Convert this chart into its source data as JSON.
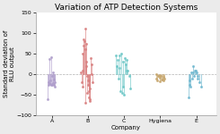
{
  "title": "Variation of ATP Detection Systems",
  "xlabel": "Company",
  "ylabel": "Standard deviation of\nRLU output",
  "ylim": [
    -100,
    150
  ],
  "yticks": [
    -100,
    -50,
    0,
    50,
    100,
    150
  ],
  "categories": [
    "A",
    "B",
    "C",
    "Hygiena",
    "E"
  ],
  "cat_x": [
    1,
    2,
    3,
    4,
    5
  ],
  "colors": [
    "#b09fcc",
    "#d98080",
    "#70c8c8",
    "#c8a870",
    "#70b8d0"
  ],
  "hline_y": 0,
  "A_points": [
    [
      0.92,
      -25
    ],
    [
      0.94,
      -22
    ],
    [
      0.96,
      -24
    ],
    [
      0.98,
      -25
    ],
    [
      1.0,
      -25
    ],
    [
      1.02,
      -22
    ],
    [
      1.04,
      -24
    ],
    [
      1.06,
      -25
    ],
    [
      0.93,
      38
    ],
    [
      0.97,
      42
    ],
    [
      1.01,
      -5
    ],
    [
      1.05,
      -12
    ],
    [
      1.08,
      -30
    ],
    [
      0.89,
      -60
    ],
    [
      0.95,
      -15
    ],
    [
      1.03,
      5
    ],
    [
      0.91,
      -20
    ],
    [
      1.07,
      -20
    ]
  ],
  "B_points": [
    [
      1.82,
      -20
    ],
    [
      1.86,
      10
    ],
    [
      1.88,
      70
    ],
    [
      1.9,
      80
    ],
    [
      1.92,
      110
    ],
    [
      1.94,
      75
    ],
    [
      1.96,
      30
    ],
    [
      1.98,
      -5
    ],
    [
      2.0,
      -25
    ],
    [
      2.02,
      -40
    ],
    [
      2.04,
      -60
    ],
    [
      2.06,
      -65
    ],
    [
      1.84,
      50
    ],
    [
      1.88,
      85
    ],
    [
      1.92,
      60
    ],
    [
      1.96,
      20
    ],
    [
      2.0,
      -15
    ],
    [
      2.04,
      -35
    ],
    [
      2.08,
      40
    ],
    [
      2.1,
      0
    ],
    [
      1.8,
      5
    ],
    [
      1.85,
      -30
    ],
    [
      2.1,
      25
    ],
    [
      2.12,
      -20
    ],
    [
      1.93,
      -70
    ],
    [
      1.97,
      -45
    ],
    [
      2.02,
      -55
    ]
  ],
  "C_points": [
    [
      2.78,
      45
    ],
    [
      2.82,
      35
    ],
    [
      2.86,
      15
    ],
    [
      2.9,
      -40
    ],
    [
      2.94,
      -45
    ],
    [
      2.98,
      30
    ],
    [
      3.02,
      40
    ],
    [
      3.06,
      35
    ],
    [
      3.1,
      10
    ],
    [
      3.14,
      -5
    ],
    [
      3.18,
      -35
    ],
    [
      2.8,
      20
    ],
    [
      2.84,
      -10
    ],
    [
      2.88,
      45
    ],
    [
      2.92,
      50
    ],
    [
      2.96,
      -30
    ],
    [
      3.0,
      -50
    ],
    [
      3.04,
      25
    ],
    [
      3.08,
      10
    ]
  ],
  "Hygiena_points": [
    [
      3.88,
      -10
    ],
    [
      3.92,
      -15
    ],
    [
      3.96,
      -5
    ],
    [
      4.0,
      -8
    ],
    [
      4.04,
      -12
    ],
    [
      4.08,
      -7
    ],
    [
      4.12,
      -10
    ],
    [
      3.9,
      0
    ],
    [
      3.94,
      -3
    ],
    [
      3.98,
      -18
    ],
    [
      4.02,
      -5
    ],
    [
      4.06,
      -12
    ],
    [
      4.1,
      -15
    ]
  ],
  "E_points": [
    [
      4.8,
      -25
    ],
    [
      4.84,
      -30
    ],
    [
      4.88,
      -10
    ],
    [
      4.92,
      5
    ],
    [
      4.96,
      10
    ],
    [
      5.0,
      5
    ],
    [
      5.04,
      -5
    ],
    [
      5.08,
      -20
    ],
    [
      5.12,
      -30
    ],
    [
      4.82,
      -15
    ],
    [
      4.86,
      5
    ],
    [
      4.9,
      20
    ],
    [
      4.94,
      -5
    ],
    [
      4.98,
      10
    ],
    [
      5.02,
      -10
    ],
    [
      4.78,
      -55
    ]
  ],
  "bg_color": "#ebebeb",
  "plot_bg": "#ffffff",
  "title_fontsize": 6.5,
  "label_fontsize": 5.0,
  "tick_fontsize": 4.5,
  "xlim": [
    0.55,
    5.55
  ]
}
